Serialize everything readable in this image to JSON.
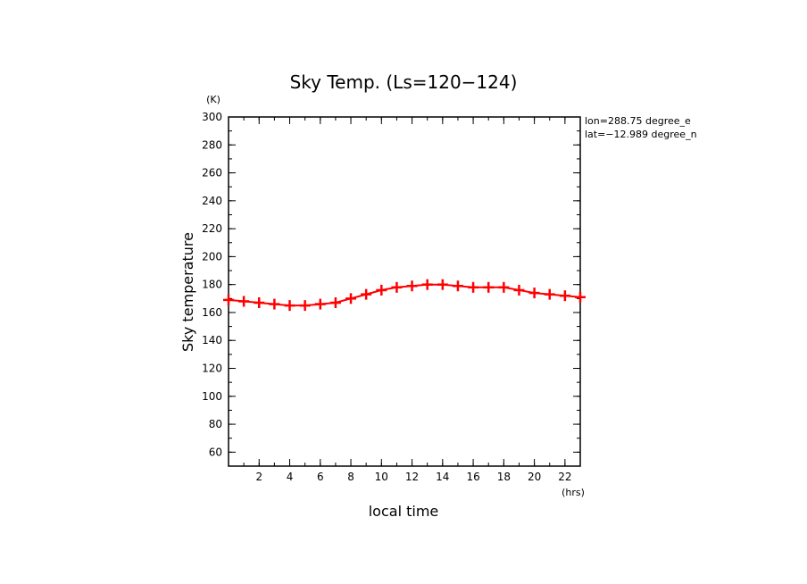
{
  "chart_data": {
    "type": "line",
    "title": "Sky Temp. (Ls=120−124)",
    "xlabel": "local time",
    "ylabel": "Sky temperature",
    "x_unit": "(hrs)",
    "y_unit": "(K)",
    "xlim": [
      0,
      23
    ],
    "ylim": [
      50,
      300
    ],
    "x_ticks": [
      2,
      4,
      6,
      8,
      10,
      12,
      14,
      16,
      18,
      20,
      22
    ],
    "y_ticks": [
      60,
      80,
      100,
      120,
      140,
      160,
      180,
      200,
      220,
      240,
      260,
      280,
      300
    ],
    "grid": false,
    "annotations": [
      "lon=288.75 degree_e",
      "lat=−12.989 degree_n"
    ],
    "series": [
      {
        "color": "#ff0000",
        "marker": "plus",
        "x": [
          0,
          1,
          2,
          3,
          4,
          5,
          6,
          7,
          8,
          9,
          10,
          11,
          12,
          13,
          14,
          15,
          16,
          17,
          18,
          19,
          20,
          21,
          22,
          23
        ],
        "y": [
          169,
          168,
          167,
          166,
          165,
          165,
          166,
          167,
          170,
          173,
          176,
          178,
          179,
          180,
          180,
          179,
          178,
          178,
          178,
          176,
          174,
          173,
          172,
          171
        ]
      }
    ]
  }
}
